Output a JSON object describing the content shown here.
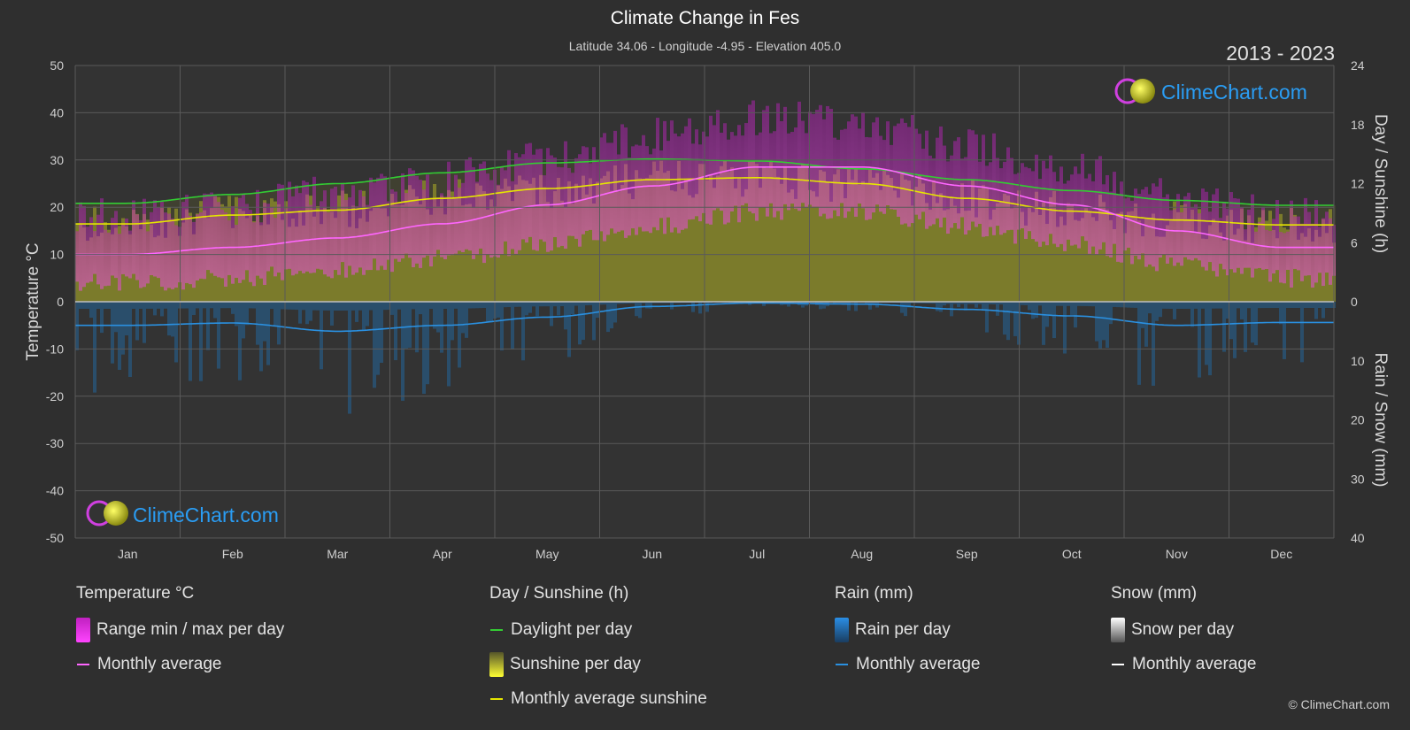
{
  "header": {
    "title": "Climate Change in Fes",
    "subtitle": "Latitude 34.06 - Longitude -4.95 - Elevation 405.0",
    "years": "2013 - 2023"
  },
  "watermark": "ClimeChart.com",
  "copyright": "© ClimeChart.com",
  "chart_data": {
    "type": "area",
    "months": [
      "Jan",
      "Feb",
      "Mar",
      "Apr",
      "May",
      "Jun",
      "Jul",
      "Aug",
      "Sep",
      "Oct",
      "Nov",
      "Dec"
    ],
    "left_axis": {
      "label": "Temperature °C",
      "range": [
        -50,
        50
      ],
      "ticks": [
        50,
        40,
        30,
        20,
        10,
        0,
        -10,
        -20,
        -30,
        -40,
        -50
      ]
    },
    "right_axis_top": {
      "label": "Day / Sunshine (h)",
      "range": [
        0,
        24
      ],
      "ticks": [
        24,
        18,
        12,
        6,
        0
      ]
    },
    "right_axis_bottom": {
      "label": "Rain / Snow (mm)",
      "range": [
        0,
        40
      ],
      "ticks": [
        0,
        10,
        20,
        30,
        40
      ]
    },
    "grid": true,
    "series": [
      {
        "name": "Daylight per day",
        "unit": "h",
        "color": "#33cc33",
        "values": [
          10.0,
          10.9,
          12.0,
          13.1,
          14.1,
          14.5,
          14.3,
          13.5,
          12.4,
          11.3,
          10.3,
          9.8
        ]
      },
      {
        "name": "Monthly average sunshine",
        "unit": "h",
        "color": "#e6e600",
        "values": [
          7.9,
          8.8,
          9.3,
          10.5,
          11.5,
          12.4,
          12.6,
          12.0,
          10.5,
          9.2,
          8.3,
          7.8
        ]
      },
      {
        "name": "Monthly average",
        "unit": "°C",
        "color": "#ff66ff",
        "values": [
          10.0,
          11.5,
          13.5,
          16.5,
          20.5,
          24.5,
          28.5,
          28.5,
          24.5,
          20.5,
          15.0,
          11.5
        ]
      },
      {
        "name": "Monthly average",
        "unit": "mm",
        "color": "#2a90e0",
        "values": [
          4.0,
          3.6,
          5.0,
          4.0,
          2.6,
          0.8,
          0.2,
          0.4,
          1.3,
          2.4,
          4.0,
          3.5
        ]
      },
      {
        "name": "Range min / max per day",
        "unit": "°C",
        "min": [
          4,
          5,
          7,
          9,
          12,
          16,
          19,
          19,
          16,
          12,
          8,
          5
        ],
        "max": [
          18,
          20,
          23,
          26,
          30,
          35,
          39,
          38,
          33,
          28,
          22,
          18
        ]
      }
    ]
  },
  "legend": {
    "temperature": {
      "heading": "Temperature °C",
      "range_label": "Range min / max per day",
      "avg_label": "Monthly average"
    },
    "sunshine": {
      "heading": "Day / Sunshine (h)",
      "daylight_label": "Daylight per day",
      "sunshine_label": "Sunshine per day",
      "avg_label": "Monthly average sunshine"
    },
    "rain": {
      "heading": "Rain (mm)",
      "rain_label": "Rain per day",
      "avg_label": "Monthly average"
    },
    "snow": {
      "heading": "Snow (mm)",
      "snow_label": "Snow per day",
      "avg_label": "Monthly average"
    }
  },
  "colors": {
    "background": "#2f2f2f",
    "temp_range": "#e020e0",
    "sunshine_fill": "#9a9a28",
    "rain_bar": "#1f6fb0",
    "snow": "#ffffff",
    "watermark_text": "#2a9df4"
  }
}
